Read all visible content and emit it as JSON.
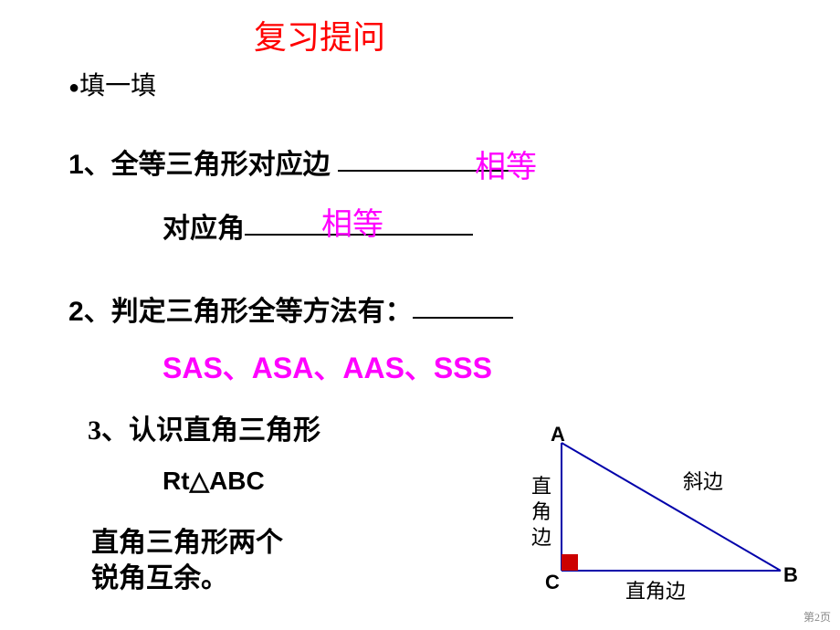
{
  "title": "复习提问",
  "bullet": "填一填",
  "q1": {
    "prefix": "1、全等三角形对应边",
    "answer": "相等",
    "line2_prefix": "对应角",
    "line2_answer": "相等"
  },
  "q2": {
    "prefix": "2、判定三角形全等方法有：",
    "answer": "SAS、ASA、AAS、SSS"
  },
  "q3": {
    "prefix": "3、认识直角三角形",
    "rt_label": "Rt△ABC",
    "note": "直角三角形两个\n锐角互余。"
  },
  "triangle": {
    "A": "A",
    "B": "B",
    "C": "C",
    "hypotenuse": "斜边",
    "leg_vertical_1": "直",
    "leg_vertical_2": "角",
    "leg_vertical_3": "边",
    "leg_horizontal": "直角边",
    "stroke_color": "#0000aa",
    "right_angle_fill": "#cc0000",
    "label_color": "#000000",
    "label_fontsize": 22,
    "side_fontsize": 22
  },
  "colors": {
    "title": "#ff0000",
    "text": "#000000",
    "answer": "#ff00ff",
    "background": "#ffffff"
  },
  "page": "第2页"
}
